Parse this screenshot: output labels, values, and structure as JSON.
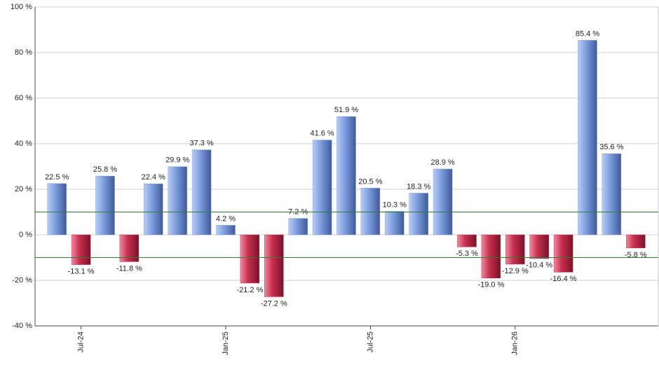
{
  "chart_data": {
    "type": "bar",
    "categories": [
      null,
      "Jul-24",
      null,
      null,
      null,
      null,
      null,
      "Jan-25",
      null,
      null,
      null,
      null,
      null,
      "Jul-25",
      null,
      null,
      null,
      null,
      null,
      "Jan-26",
      null,
      null,
      null,
      null,
      null
    ],
    "values": [
      22.5,
      -13.1,
      25.8,
      -11.8,
      22.4,
      29.9,
      37.3,
      4.2,
      -21.2,
      -27.2,
      7.2,
      41.6,
      51.9,
      20.5,
      10.3,
      18.3,
      28.9,
      -5.3,
      -19.0,
      -12.9,
      -10.4,
      -16.4,
      85.4,
      35.6,
      -5.8
    ],
    "value_labels": [
      "22.5 %",
      "-13.1 %",
      "25.8 %",
      "-11.8 %",
      "22.4 %",
      "29.9 %",
      "37.3 %",
      "4.2 %",
      "-21.2 %",
      "-27.2 %",
      "7.2 %",
      "41.6 %",
      "51.9 %",
      "20.5 %",
      "10.3 %",
      "18.3 %",
      "28.9 %",
      "-5.3 %",
      "-19.0 %",
      "-12.9 %",
      "-10.4 %",
      "-16.4 %",
      "85.4 %",
      "35.6 %",
      "-5.8 %"
    ],
    "positive_color": "#7f9fe0",
    "negative_color": "#c8304f",
    "ylim": [
      -40,
      100
    ],
    "yticks": [
      {
        "value": -40,
        "label": "-40 %"
      },
      {
        "value": -20,
        "label": "-20 %"
      },
      {
        "value": 0,
        "label": "0 %"
      },
      {
        "value": 20,
        "label": "20 %"
      },
      {
        "value": 40,
        "label": "40 %"
      },
      {
        "value": 60,
        "label": "60 %"
      },
      {
        "value": 80,
        "label": "80 %"
      },
      {
        "value": 100,
        "label": "100 %"
      }
    ],
    "reference_lines": [
      10,
      -10
    ],
    "reference_color": "#2e7d32",
    "grid": true
  }
}
